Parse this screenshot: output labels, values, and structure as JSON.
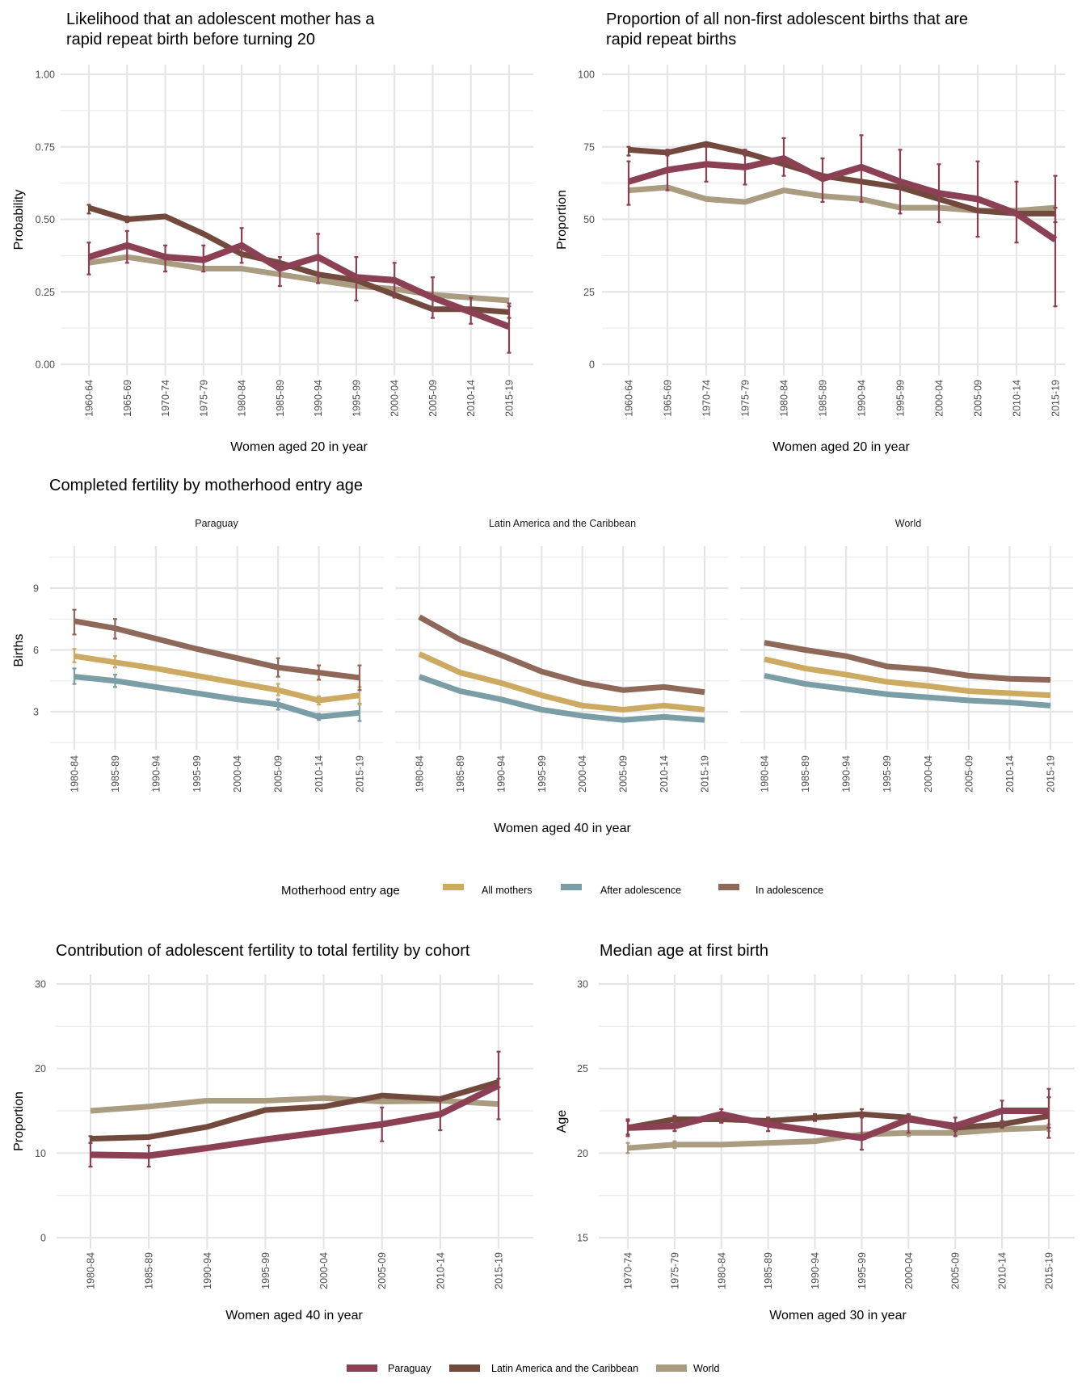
{
  "colors": {
    "Paraguay": "#8b4153",
    "Latin America and the Caribbean": "#714a3d",
    "World": "#a99c80",
    "All mothers": "#cdaa62",
    "After adolescence": "#7b9ea6",
    "In adolescence": "#8e6859"
  },
  "legend_bottom": {
    "items": [
      "Paraguay",
      "Latin America and the Caribbean",
      "World"
    ]
  },
  "legend_middle": {
    "title": "Motherhood entry age",
    "items": [
      "All mothers",
      "After adolescence",
      "In adolescence"
    ]
  },
  "chart_data": [
    {
      "id": "rapid-repeat-likelihood",
      "type": "line",
      "title": "Likelihood that an adolescent mother has a rapid repeat birth before turning 20",
      "title_lines": [
        "Likelihood that an adolescent mother has a",
        "rapid repeat birth before turning 20"
      ],
      "xlabel": "Women aged 20 in year",
      "ylabel": "Probability",
      "ylim": [
        0,
        1
      ],
      "yticks": [
        "0.00",
        "0.25",
        "0.50",
        "0.75",
        "1.00"
      ],
      "ytick_values": [
        0,
        0.25,
        0.5,
        0.75,
        1.0
      ],
      "categories": [
        "1960-64",
        "1965-69",
        "1970-74",
        "1975-79",
        "1980-84",
        "1985-89",
        "1990-94",
        "1995-99",
        "2000-04",
        "2005-09",
        "2010-14",
        "2015-19"
      ],
      "grid": true,
      "series": [
        {
          "name": "World",
          "values": [
            0.35,
            0.37,
            0.35,
            0.33,
            0.33,
            0.31,
            0.29,
            0.27,
            0.26,
            0.24,
            0.23,
            0.22
          ]
        },
        {
          "name": "Latin America and the Caribbean",
          "values": [
            0.54,
            0.5,
            0.51,
            0.45,
            0.38,
            0.35,
            0.31,
            0.29,
            0.24,
            0.19,
            0.19,
            0.18
          ],
          "err_low": [
            0.52,
            0.49,
            null,
            null,
            null,
            null,
            null,
            null,
            null,
            null,
            null,
            0.16
          ],
          "err_high": [
            0.55,
            0.51,
            null,
            null,
            null,
            null,
            null,
            null,
            null,
            null,
            null,
            0.2
          ]
        },
        {
          "name": "Paraguay",
          "values": [
            0.37,
            0.41,
            0.37,
            0.36,
            0.41,
            0.33,
            0.37,
            0.3,
            0.29,
            0.23,
            0.18,
            0.13
          ],
          "err_low": [
            0.31,
            0.35,
            0.32,
            0.32,
            0.35,
            0.27,
            0.28,
            0.22,
            0.23,
            0.16,
            0.14,
            0.04
          ],
          "err_high": [
            0.42,
            0.46,
            0.41,
            0.41,
            0.47,
            0.37,
            0.45,
            0.37,
            0.35,
            0.3,
            0.23,
            0.21
          ]
        }
      ]
    },
    {
      "id": "rapid-repeat-proportion",
      "type": "line",
      "title": "Proportion of all non-first adolescent births that are rapid repeat births",
      "title_lines": [
        "Proportion of all non-first adolescent births that are",
        "rapid repeat births"
      ],
      "xlabel": "Women aged 20 in year",
      "ylabel": "Proportion",
      "ylim": [
        0,
        100
      ],
      "yticks": [
        "0",
        "25",
        "50",
        "75",
        "100"
      ],
      "ytick_values": [
        0,
        25,
        50,
        75,
        100
      ],
      "categories": [
        "1960-64",
        "1965-69",
        "1970-74",
        "1975-79",
        "1980-84",
        "1985-89",
        "1990-94",
        "1995-99",
        "2000-04",
        "2005-09",
        "2010-14",
        "2015-19"
      ],
      "grid": true,
      "series": [
        {
          "name": "World",
          "values": [
            60,
            61,
            57,
            56,
            60,
            58,
            57,
            54,
            54,
            53,
            53,
            54
          ]
        },
        {
          "name": "Latin America and the Caribbean",
          "values": [
            74,
            73,
            76,
            73,
            69,
            65,
            63,
            61,
            57,
            53,
            52,
            52
          ],
          "err_low": [
            72,
            72,
            null,
            72,
            null,
            null,
            null,
            null,
            null,
            null,
            null,
            49
          ],
          "err_high": [
            75,
            74,
            null,
            74,
            null,
            null,
            null,
            null,
            null,
            null,
            null,
            54
          ]
        },
        {
          "name": "Paraguay",
          "values": [
            63,
            67,
            69,
            68,
            71,
            64,
            68,
            63,
            59,
            57,
            52,
            43
          ],
          "err_low": [
            55,
            60,
            63,
            62,
            65,
            56,
            56,
            52,
            49,
            44,
            42,
            20
          ],
          "err_high": [
            70,
            74,
            75,
            74,
            78,
            71,
            79,
            74,
            69,
            70,
            63,
            65
          ]
        }
      ]
    },
    {
      "id": "completed-fertility",
      "type": "line",
      "title": "Completed fertility by motherhood entry age",
      "xlabel": "Women aged 40 in year",
      "ylabel": "Births",
      "ylim": [
        1.0,
        11.5
      ],
      "yticks": [
        "3",
        "6",
        "9"
      ],
      "ytick_values": [
        3,
        6,
        9
      ],
      "categories": [
        "1980-84",
        "1985-89",
        "1990-94",
        "1995-99",
        "2000-04",
        "2005-09",
        "2010-14",
        "2015-19"
      ],
      "grid": true,
      "legend": "bottom",
      "facets": [
        {
          "name": "Paraguay",
          "series": [
            {
              "name": "All mothers",
              "values": [
                5.7,
                5.4,
                5.1,
                4.75,
                4.4,
                4.05,
                3.55,
                3.8
              ],
              "err_low": [
                5.4,
                5.15,
                null,
                null,
                null,
                3.8,
                3.35,
                3.35
              ],
              "err_high": [
                6.05,
                5.7,
                null,
                null,
                null,
                4.35,
                3.75,
                4.2
              ]
            },
            {
              "name": "After adolescence",
              "values": [
                4.7,
                4.5,
                4.2,
                3.9,
                3.6,
                3.35,
                2.75,
                2.95
              ],
              "err_low": [
                4.35,
                4.2,
                null,
                null,
                null,
                3.1,
                2.6,
                2.55
              ],
              "err_high": [
                5.1,
                4.8,
                null,
                null,
                null,
                3.6,
                2.9,
                3.4
              ]
            },
            {
              "name": "In adolescence",
              "values": [
                7.4,
                7.05,
                6.55,
                6.05,
                5.6,
                5.15,
                4.9,
                4.65
              ],
              "err_low": [
                6.75,
                6.55,
                null,
                null,
                null,
                4.7,
                4.55,
                4.05
              ],
              "err_high": [
                7.95,
                7.5,
                null,
                null,
                null,
                5.6,
                5.25,
                5.25
              ]
            }
          ]
        },
        {
          "name": "Latin America and the Caribbean",
          "series": [
            {
              "name": "All mothers",
              "values": [
                5.8,
                4.9,
                4.4,
                3.8,
                3.3,
                3.1,
                3.3,
                3.1
              ]
            },
            {
              "name": "After adolescence",
              "values": [
                4.7,
                4.0,
                3.6,
                3.1,
                2.8,
                2.6,
                2.75,
                2.6
              ]
            },
            {
              "name": "In adolescence",
              "values": [
                7.6,
                6.5,
                5.75,
                4.95,
                4.4,
                4.05,
                4.2,
                3.95
              ]
            }
          ]
        },
        {
          "name": "World",
          "series": [
            {
              "name": "All mothers",
              "values": [
                5.55,
                5.1,
                4.8,
                4.45,
                4.25,
                4.0,
                3.9,
                3.8
              ]
            },
            {
              "name": "After adolescence",
              "values": [
                4.75,
                4.35,
                4.1,
                3.85,
                3.7,
                3.55,
                3.45,
                3.3
              ]
            },
            {
              "name": "In adolescence",
              "values": [
                6.35,
                6.0,
                5.7,
                5.2,
                5.05,
                4.75,
                4.6,
                4.55
              ]
            }
          ]
        }
      ]
    },
    {
      "id": "adolescent-contribution",
      "type": "line",
      "title": "Contribution of adolescent fertility to total fertility by cohort",
      "xlabel": "Women aged 40 in year",
      "ylabel": "Proportion",
      "ylim": [
        0,
        30
      ],
      "yticks": [
        "0",
        "10",
        "20",
        "30"
      ],
      "ytick_values": [
        0,
        10,
        20,
        30
      ],
      "categories": [
        "1980-84",
        "1985-89",
        "1990-94",
        "1995-99",
        "2000-04",
        "2005-09",
        "2010-14",
        "2015-19"
      ],
      "grid": true,
      "series": [
        {
          "name": "World",
          "values": [
            15.0,
            15.5,
            16.2,
            16.2,
            16.5,
            16.1,
            16.2,
            15.8
          ]
        },
        {
          "name": "Latin America and the Caribbean",
          "values": [
            11.7,
            11.9,
            13.1,
            15.1,
            15.5,
            16.8,
            16.4,
            18.4
          ],
          "err_low": [
            11.2,
            null,
            null,
            null,
            null,
            null,
            null,
            17.8
          ],
          "err_high": [
            12.0,
            null,
            null,
            null,
            null,
            null,
            null,
            18.8
          ]
        },
        {
          "name": "Paraguay",
          "values": [
            9.8,
            9.7,
            10.6,
            11.6,
            12.5,
            13.4,
            14.6,
            18.0
          ],
          "err_low": [
            8.4,
            8.4,
            null,
            null,
            null,
            11.4,
            12.7,
            14.0
          ],
          "err_high": [
            11.2,
            10.9,
            null,
            null,
            null,
            15.4,
            16.5,
            22.0
          ]
        }
      ]
    },
    {
      "id": "median-age-first-birth",
      "type": "line",
      "title": "Median age at first birth",
      "xlabel": "Women aged 30 in year",
      "ylabel": "Age",
      "ylim": [
        15,
        30
      ],
      "yticks": [
        "15",
        "20",
        "25",
        "30"
      ],
      "ytick_values": [
        15,
        20,
        25,
        30
      ],
      "categories": [
        "1970-74",
        "1975-79",
        "1980-84",
        "1985-89",
        "1990-94",
        "1995-99",
        "2000-04",
        "2005-09",
        "2010-14",
        "2015-19"
      ],
      "grid": true,
      "series": [
        {
          "name": "World",
          "values": [
            20.3,
            20.5,
            20.5,
            20.6,
            20.7,
            21.1,
            21.2,
            21.2,
            21.4,
            21.5
          ],
          "err_low": [
            20.0,
            20.3,
            null,
            null,
            null,
            null,
            21.0,
            null,
            21.3,
            21.3
          ],
          "err_high": [
            20.6,
            20.7,
            null,
            null,
            null,
            null,
            21.3,
            null,
            21.6,
            21.7
          ]
        },
        {
          "name": "Latin America and the Caribbean",
          "values": [
            21.5,
            22.0,
            22.0,
            21.9,
            22.1,
            22.3,
            22.1,
            21.5,
            21.7,
            22.2
          ],
          "err_low": [
            21.1,
            21.8,
            21.8,
            21.7,
            21.9,
            22.1,
            21.9,
            21.3,
            21.5,
            21.5
          ],
          "err_high": [
            21.9,
            22.2,
            22.2,
            22.1,
            22.3,
            22.6,
            22.3,
            21.7,
            21.9,
            23.3
          ]
        },
        {
          "name": "Paraguay",
          "values": [
            21.5,
            21.6,
            22.3,
            21.7,
            21.3,
            20.9,
            22.0,
            21.6,
            22.5,
            22.5
          ],
          "err_low": [
            21.0,
            21.3,
            21.8,
            21.3,
            null,
            20.2,
            21.2,
            21.0,
            21.7,
            20.9
          ],
          "err_high": [
            22.0,
            22.1,
            22.6,
            22.1,
            null,
            22.2,
            22.3,
            22.1,
            23.1,
            23.8
          ]
        }
      ]
    }
  ]
}
